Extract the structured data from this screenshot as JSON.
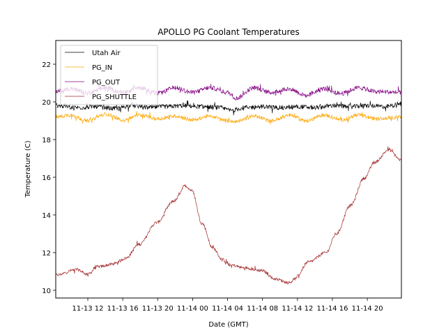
{
  "chart_data": {
    "type": "line",
    "title": "APOLLO PG Coolant Temperatures",
    "xlabel": "Date (GMT)",
    "ylabel": "Temperature (C)",
    "x_unit": "hours since 11-13 12:00",
    "xlim": [
      -3.67,
      35.9
    ],
    "ylim": [
      9.59,
      23.26
    ],
    "grid": false,
    "legend_position": "upper-left",
    "x_ticks": [
      {
        "value": 0,
        "label": "11-13 12"
      },
      {
        "value": 4,
        "label": "11-13 16"
      },
      {
        "value": 8,
        "label": "11-13 20"
      },
      {
        "value": 12,
        "label": "11-14 00"
      },
      {
        "value": 16,
        "label": "11-14 04"
      },
      {
        "value": 20,
        "label": "11-14 08"
      },
      {
        "value": 24,
        "label": "11-14 12"
      },
      {
        "value": 28,
        "label": "11-14 16"
      },
      {
        "value": 32,
        "label": "11-14 20"
      }
    ],
    "y_ticks": [
      {
        "value": 10,
        "label": "10"
      },
      {
        "value": 12,
        "label": "12"
      },
      {
        "value": 14,
        "label": "14"
      },
      {
        "value": 16,
        "label": "16"
      },
      {
        "value": 18,
        "label": "18"
      },
      {
        "value": 20,
        "label": "20"
      },
      {
        "value": 22,
        "label": "22"
      }
    ],
    "series": [
      {
        "name": "Utah Air",
        "color": "#000000",
        "noise": 0.12,
        "x": [
          -3.67,
          -1,
          1,
          3,
          5,
          7,
          9,
          11,
          13,
          15,
          16.5,
          18,
          20,
          22,
          24,
          26,
          28,
          30,
          32,
          34,
          35.9
        ],
        "y": [
          19.8,
          19.7,
          19.75,
          19.65,
          19.8,
          19.7,
          19.75,
          19.8,
          19.75,
          19.7,
          19.55,
          19.7,
          19.75,
          19.7,
          19.75,
          19.7,
          19.8,
          19.75,
          19.8,
          19.75,
          19.9
        ]
      },
      {
        "name": "PG_IN",
        "color": "#ffa500",
        "noise": 0.1,
        "x": [
          -3.67,
          -2,
          0,
          2,
          4,
          6,
          8,
          10,
          12,
          14,
          16,
          17,
          19,
          21,
          23,
          25,
          27,
          29,
          31,
          33,
          35.9
        ],
        "y": [
          19.2,
          19.3,
          19.0,
          19.35,
          19.05,
          19.3,
          19.1,
          19.25,
          19.05,
          19.25,
          19.0,
          18.95,
          19.25,
          19.0,
          19.3,
          19.0,
          19.3,
          19.05,
          19.3,
          19.1,
          19.2
        ]
      },
      {
        "name": "PG_OUT",
        "color": "#800080",
        "noise": 0.12,
        "x": [
          -3.67,
          -2,
          0,
          2,
          4,
          6,
          8,
          10,
          12,
          14,
          16,
          17,
          19,
          21,
          23,
          25,
          27,
          29,
          31,
          33,
          35.9
        ],
        "y": [
          20.55,
          20.7,
          20.45,
          20.75,
          20.5,
          20.75,
          20.45,
          20.75,
          20.5,
          20.75,
          20.5,
          20.2,
          20.75,
          20.5,
          20.7,
          20.35,
          20.7,
          20.45,
          20.75,
          20.55,
          20.5
        ]
      },
      {
        "name": "PG_SHUTTLE",
        "color": "#a52a2a",
        "noise": 0.08,
        "x": [
          -3.67,
          -1.28,
          0,
          1.12,
          3.11,
          4.31,
          5.9,
          7.9,
          9.89,
          11.17,
          11.89,
          13.09,
          14.29,
          15.48,
          16.28,
          17.88,
          19.87,
          21.47,
          23.07,
          23.67,
          25.27,
          27.26,
          28.46,
          30.06,
          31.65,
          32.85,
          34.45,
          35.9
        ],
        "y": [
          10.8,
          11.1,
          10.85,
          11.25,
          11.4,
          11.7,
          12.45,
          13.6,
          14.75,
          15.55,
          15.3,
          13.55,
          12.25,
          11.6,
          11.35,
          11.2,
          11.05,
          10.6,
          10.4,
          10.6,
          11.5,
          12.0,
          13.0,
          14.5,
          15.95,
          16.8,
          17.45,
          16.9
        ]
      }
    ]
  }
}
